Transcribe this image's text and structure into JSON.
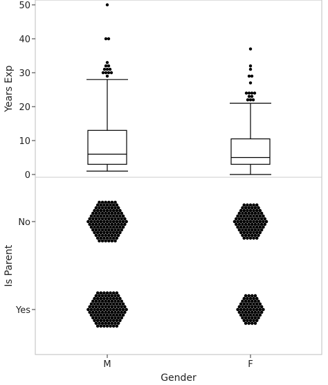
{
  "chart_data": {
    "type": "box+dot",
    "panels": [
      {
        "type": "box",
        "ylabel": "Years Exp",
        "ylim": [
          0,
          50
        ],
        "yticks": [
          0,
          10,
          20,
          30,
          40,
          50
        ],
        "categories": [
          "M",
          "F"
        ],
        "boxes": [
          {
            "category": "M",
            "whisker_low": 1,
            "q1": 3,
            "median": 6,
            "q3": 13,
            "whisker_high": 28,
            "outliers": [
              29,
              30,
              30,
              30,
              30,
              31,
              31,
              31,
              32,
              32,
              33,
              40,
              40,
              50
            ]
          },
          {
            "category": "F",
            "whisker_low": 0,
            "q1": 3,
            "median": 5,
            "q3": 10.5,
            "whisker_high": 21,
            "outliers": [
              22,
              22,
              22,
              23,
              23,
              24,
              24,
              24,
              24,
              27,
              29,
              29,
              31,
              32,
              37
            ]
          }
        ]
      },
      {
        "type": "dot-cluster",
        "ylabel": "Is Parent",
        "yticks": [
          "No",
          "Yes"
        ],
        "categories": [
          "M",
          "F"
        ],
        "clusters": [
          {
            "gender": "M",
            "parent": "No",
            "relative_size": 1.0
          },
          {
            "gender": "F",
            "parent": "No",
            "relative_size": 0.82
          },
          {
            "gender": "M",
            "parent": "Yes",
            "relative_size": 0.92
          },
          {
            "gender": "F",
            "parent": "Yes",
            "relative_size": 0.5
          }
        ]
      }
    ],
    "xlabel": "Gender",
    "xticks": [
      "M",
      "F"
    ]
  }
}
